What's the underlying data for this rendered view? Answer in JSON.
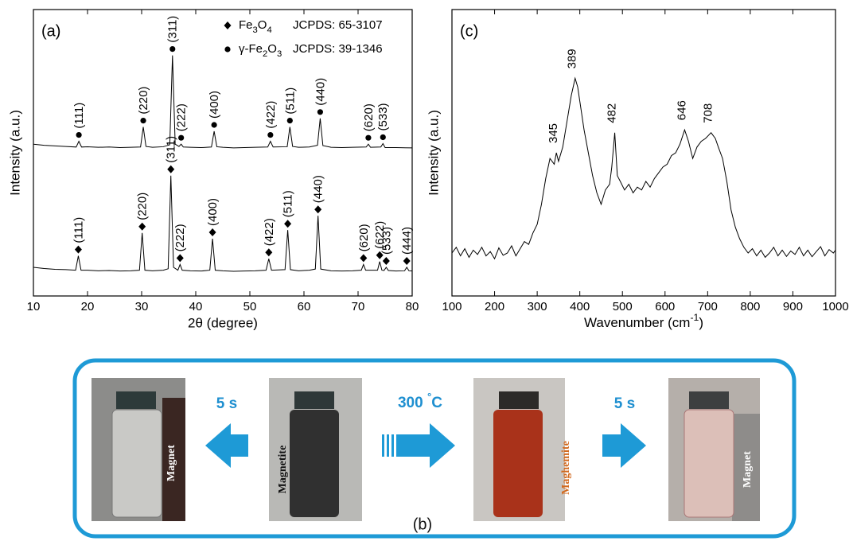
{
  "chart_data": [
    {
      "type": "line",
      "panel_label": "(a)",
      "x_label": "2θ (degree)",
      "y_label": "Intensity (a.u.)",
      "xlim": [
        10,
        80
      ],
      "xticks": [
        10,
        20,
        30,
        40,
        50,
        60,
        70,
        80
      ],
      "ylim": [
        0,
        100
      ],
      "legend": "top-right",
      "series": [
        {
          "name": "γ-Fe2O3",
          "card": "JCPDS: 39-1346",
          "color": "#000000",
          "marker": "circle",
          "x": [
            10,
            12,
            14,
            16,
            17.9,
            18.4,
            18.9,
            20,
            22,
            24,
            26,
            28,
            29.8,
            30.3,
            30.8,
            32,
            34,
            35.2,
            35.7,
            36.2,
            36.9,
            37.3,
            37.7,
            39,
            41,
            42.9,
            43.4,
            43.9,
            45,
            47,
            49,
            51,
            53.3,
            53.8,
            54.3,
            56.9,
            57.4,
            57.9,
            59,
            61,
            62.5,
            63.0,
            63.5,
            65,
            67,
            69,
            71.5,
            71.9,
            72.3,
            74.2,
            74.6,
            75,
            77,
            80
          ],
          "values": [
            53,
            52.6,
            52.4,
            52.2,
            52,
            54,
            52,
            52.1,
            51.9,
            52,
            51.8,
            51.9,
            52,
            59,
            52.2,
            51.9,
            52.1,
            52.8,
            84,
            53,
            52.2,
            53,
            52,
            51.9,
            51.8,
            52,
            57.5,
            52.1,
            51.9,
            51.7,
            51.8,
            51.9,
            52,
            54,
            52,
            52.1,
            59,
            52.2,
            51.9,
            52,
            52.6,
            62,
            52.5,
            51.9,
            51.8,
            51.9,
            52,
            53,
            51.9,
            52,
            53.2,
            51.8,
            51.8,
            51.7
          ],
          "peaks": [
            {
              "x": 18.4,
              "label": "(111)"
            },
            {
              "x": 30.3,
              "label": "(220)"
            },
            {
              "x": 35.7,
              "label": "(311)"
            },
            {
              "x": 37.3,
              "label": "(222)"
            },
            {
              "x": 43.4,
              "label": "(400)"
            },
            {
              "x": 53.8,
              "label": "(422)"
            },
            {
              "x": 57.4,
              "label": "(511)"
            },
            {
              "x": 63.0,
              "label": "(440)"
            },
            {
              "x": 71.9,
              "label": "(620)"
            },
            {
              "x": 74.6,
              "label": "(533)"
            }
          ]
        },
        {
          "name": "Fe3O4",
          "card": "JCPDS: 65-3107",
          "color": "#000000",
          "marker": "diamond",
          "x": [
            10,
            12,
            14,
            16,
            17.8,
            18.3,
            18.8,
            20,
            22,
            24,
            26,
            28,
            29.6,
            30.1,
            30.6,
            32,
            34,
            34.9,
            35.4,
            35.9,
            36.7,
            37.1,
            37.5,
            39,
            41,
            42.6,
            43.1,
            43.6,
            45,
            47,
            49,
            51,
            53,
            53.5,
            54,
            56.5,
            57.0,
            57.5,
            59,
            61,
            62.1,
            62.6,
            63.1,
            65,
            67,
            69,
            70.6,
            71,
            71.4,
            73.6,
            74,
            74.4,
            74.8,
            75.2,
            75.6,
            77,
            78.6,
            79,
            79.4,
            80
          ],
          "values": [
            10,
            9.6,
            9.3,
            9.2,
            9,
            14,
            9,
            9,
            8.8,
            8.9,
            8.7,
            8.8,
            9,
            22,
            9,
            8.8,
            9,
            9.5,
            42,
            10,
            9,
            11,
            9,
            8.8,
            8.7,
            9,
            20,
            9,
            8.8,
            8.6,
            8.7,
            8.8,
            9,
            13,
            9,
            9.2,
            23,
            9.2,
            8.8,
            9,
            9.4,
            28,
            9.4,
            8.8,
            8.7,
            8.8,
            9,
            11,
            9,
            9,
            12,
            9,
            8.9,
            10,
            8.9,
            8.7,
            8.8,
            10,
            8.8,
            8.7
          ],
          "peaks": [
            {
              "x": 18.3,
              "label": "(111)"
            },
            {
              "x": 30.1,
              "label": "(220)"
            },
            {
              "x": 35.4,
              "label": "(311)"
            },
            {
              "x": 37.1,
              "label": "(222)"
            },
            {
              "x": 43.1,
              "label": "(400)"
            },
            {
              "x": 53.5,
              "label": "(422)"
            },
            {
              "x": 57.0,
              "label": "(511)"
            },
            {
              "x": 62.6,
              "label": "(440)"
            },
            {
              "x": 71,
              "label": "(620)"
            },
            {
              "x": 74,
              "label": "(622)"
            },
            {
              "x": 75.2,
              "label": "(533)"
            },
            {
              "x": 79,
              "label": "(444)"
            }
          ]
        }
      ]
    },
    {
      "type": "line",
      "panel_label": "(c)",
      "x_label": "Wavenumber (cm-1)",
      "y_label": "Intensity (a.u.)",
      "xlim": [
        100,
        1000
      ],
      "xticks": [
        100,
        200,
        300,
        400,
        500,
        600,
        700,
        800,
        900,
        1000
      ],
      "ylim": [
        0,
        100
      ],
      "series": [
        {
          "color": "#000000",
          "x": [
            100,
            110,
            120,
            130,
            140,
            150,
            160,
            170,
            180,
            190,
            200,
            210,
            220,
            230,
            240,
            250,
            260,
            270,
            280,
            290,
            300,
            310,
            320,
            330,
            340,
            345,
            350,
            360,
            370,
            380,
            389,
            395,
            400,
            410,
            420,
            430,
            440,
            450,
            460,
            470,
            475,
            482,
            488,
            495,
            505,
            515,
            525,
            535,
            545,
            555,
            565,
            575,
            585,
            595,
            605,
            615,
            625,
            635,
            646,
            655,
            665,
            675,
            685,
            695,
            708,
            718,
            725,
            735,
            745,
            755,
            765,
            775,
            785,
            795,
            805,
            815,
            825,
            835,
            845,
            855,
            865,
            875,
            885,
            895,
            905,
            915,
            925,
            935,
            945,
            955,
            965,
            975,
            985,
            995,
            1000
          ],
          "values": [
            15,
            17,
            14,
            16.5,
            13.5,
            16,
            14.5,
            17,
            14,
            15.5,
            13,
            16.8,
            14.2,
            15,
            17.5,
            14,
            16.5,
            19,
            18,
            22,
            25,
            32,
            41,
            48,
            46,
            50,
            47,
            52,
            61,
            70,
            76,
            73,
            68,
            58,
            50,
            42,
            36,
            32,
            37,
            39,
            45,
            57,
            42,
            40,
            37,
            39,
            36,
            38,
            37,
            40,
            38,
            41,
            43,
            45,
            46,
            49,
            50,
            53,
            58,
            54,
            48,
            52,
            54,
            55,
            57,
            55,
            52,
            48,
            40,
            30,
            24,
            20,
            17,
            15,
            16.5,
            14,
            16,
            13.5,
            15,
            17,
            14,
            16,
            13.8,
            15.7,
            14.5,
            17,
            14,
            16,
            13.7,
            15.5,
            17.2,
            14,
            16.2,
            15,
            16
          ]
        }
      ],
      "peaks": [
        345,
        389,
        482,
        646,
        708
      ]
    }
  ],
  "panel_b": {
    "label": "(b)",
    "steps": [
      "5 s",
      "300 °C",
      "5 s"
    ],
    "vials": [
      "Magnet",
      "Magnetite",
      "Maghemite",
      "Magnet"
    ]
  }
}
